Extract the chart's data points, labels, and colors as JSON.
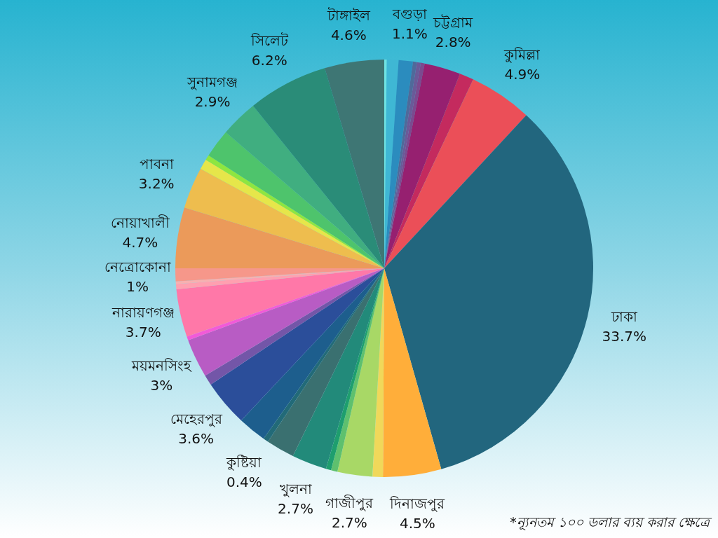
{
  "chart_data": {
    "type": "pie",
    "categories": [
      null,
      null,
      "বগুড়া",
      null,
      null,
      null,
      "চট্টগ্রাম",
      null,
      "কুমিল্লা",
      "ঢাকা",
      "দিনাজপুর",
      null,
      "গাজীপুর",
      null,
      null,
      "খুলনা",
      null,
      "কুষ্টিয়া",
      null,
      "মেহেরপুর",
      null,
      "ময়মনসিংহ",
      null,
      "নারায়ণগঞ্জ",
      null,
      null,
      "নেত্রোকোনা",
      "নোয়াখালী",
      "পাবনা",
      null,
      null,
      null,
      "সুনামগঞ্জ",
      "সিলেট",
      "টাঙ্গাইল"
    ],
    "values": [
      0.2,
      0.9,
      1.1,
      0.3,
      0.3,
      0.3,
      2.8,
      1.1,
      4.9,
      33.7,
      4.5,
      0.8,
      2.7,
      0.5,
      0.4,
      2.7,
      2.2,
      0.4,
      2.2,
      3.6,
      0.8,
      3,
      0.3,
      3.7,
      0.4,
      0.2,
      1,
      4.7,
      3.2,
      0.8,
      0.4,
      2.2,
      2.9,
      6.2,
      4.6
    ],
    "value_labels": [
      null,
      null,
      "1.1%",
      null,
      null,
      null,
      "2.8%",
      null,
      "4.9%",
      "33.7%",
      "4.5%",
      null,
      "2.7%",
      null,
      null,
      "2.7%",
      null,
      "0.4%",
      null,
      "3.6%",
      null,
      "3%",
      null,
      "3.7%",
      null,
      null,
      "1%",
      "4.7%",
      "3.2%",
      null,
      null,
      null,
      "2.9%",
      "6.2%",
      "4.6%"
    ],
    "colors": [
      "#6fe3e3",
      "#3fb7d4",
      "#2b8cbe",
      "#4f6a9a",
      "#6a5a98",
      "#7b4a8f",
      "#962070",
      "#c42a5e",
      "#eb4f58",
      "#22667e",
      "#ffae3a",
      "#f0d85a",
      "#a8d866",
      "#5ec06e",
      "#1e9e6e",
      "#228a7a",
      "#3a7070",
      "#226a78",
      "#1d5e8d",
      "#2b4e9a",
      "#7356a8",
      "#b85cc4",
      "#f25ad8",
      "#ff78a8",
      "#ffa0b0",
      "#f8b0b0",
      "#f6978a",
      "#eb9a5a",
      "#eebd4e",
      "#e6e64a",
      "#8ee640",
      "#4ec46c",
      "#40ae80",
      "#2a8c78",
      "#3e7674"
    ],
    "annotations": [
      "*ন্যূনতম ১০০ ডলার ব্যয় করার ক্ষেত্রে"
    ]
  }
}
